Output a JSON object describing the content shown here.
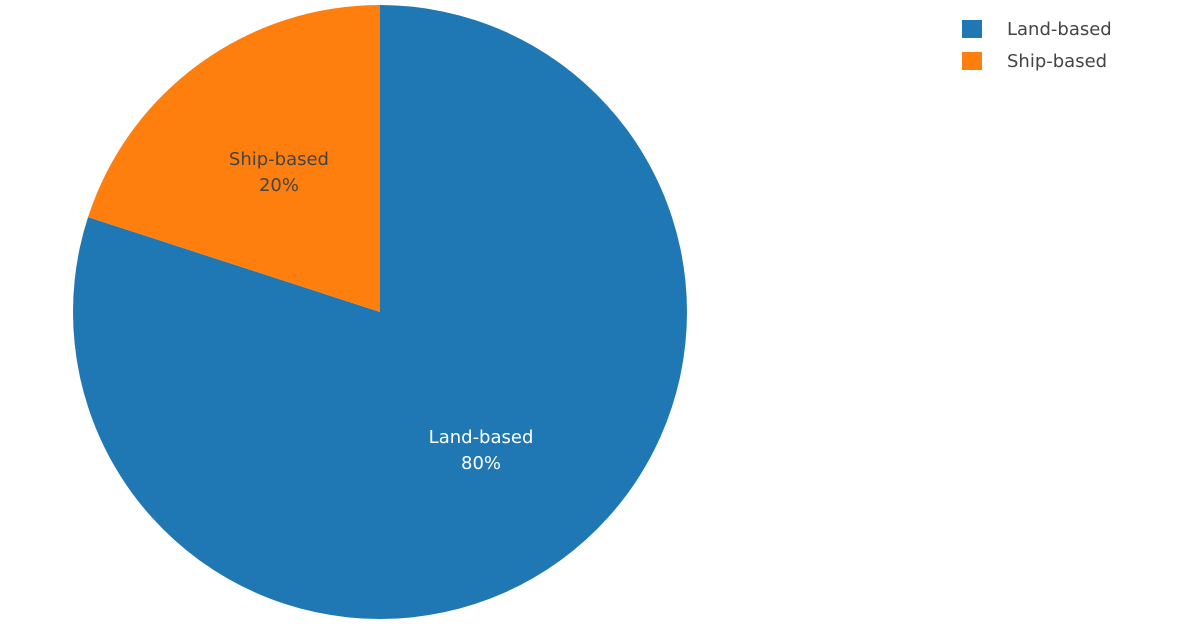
{
  "chart_data": {
    "type": "pie",
    "categories": [
      "Land-based",
      "Ship-based"
    ],
    "values": [
      80,
      20
    ],
    "value_labels": [
      "80%",
      "20%"
    ],
    "colors": [
      "#1f77b4",
      "#ff7f0e"
    ],
    "legend": "top-right"
  }
}
